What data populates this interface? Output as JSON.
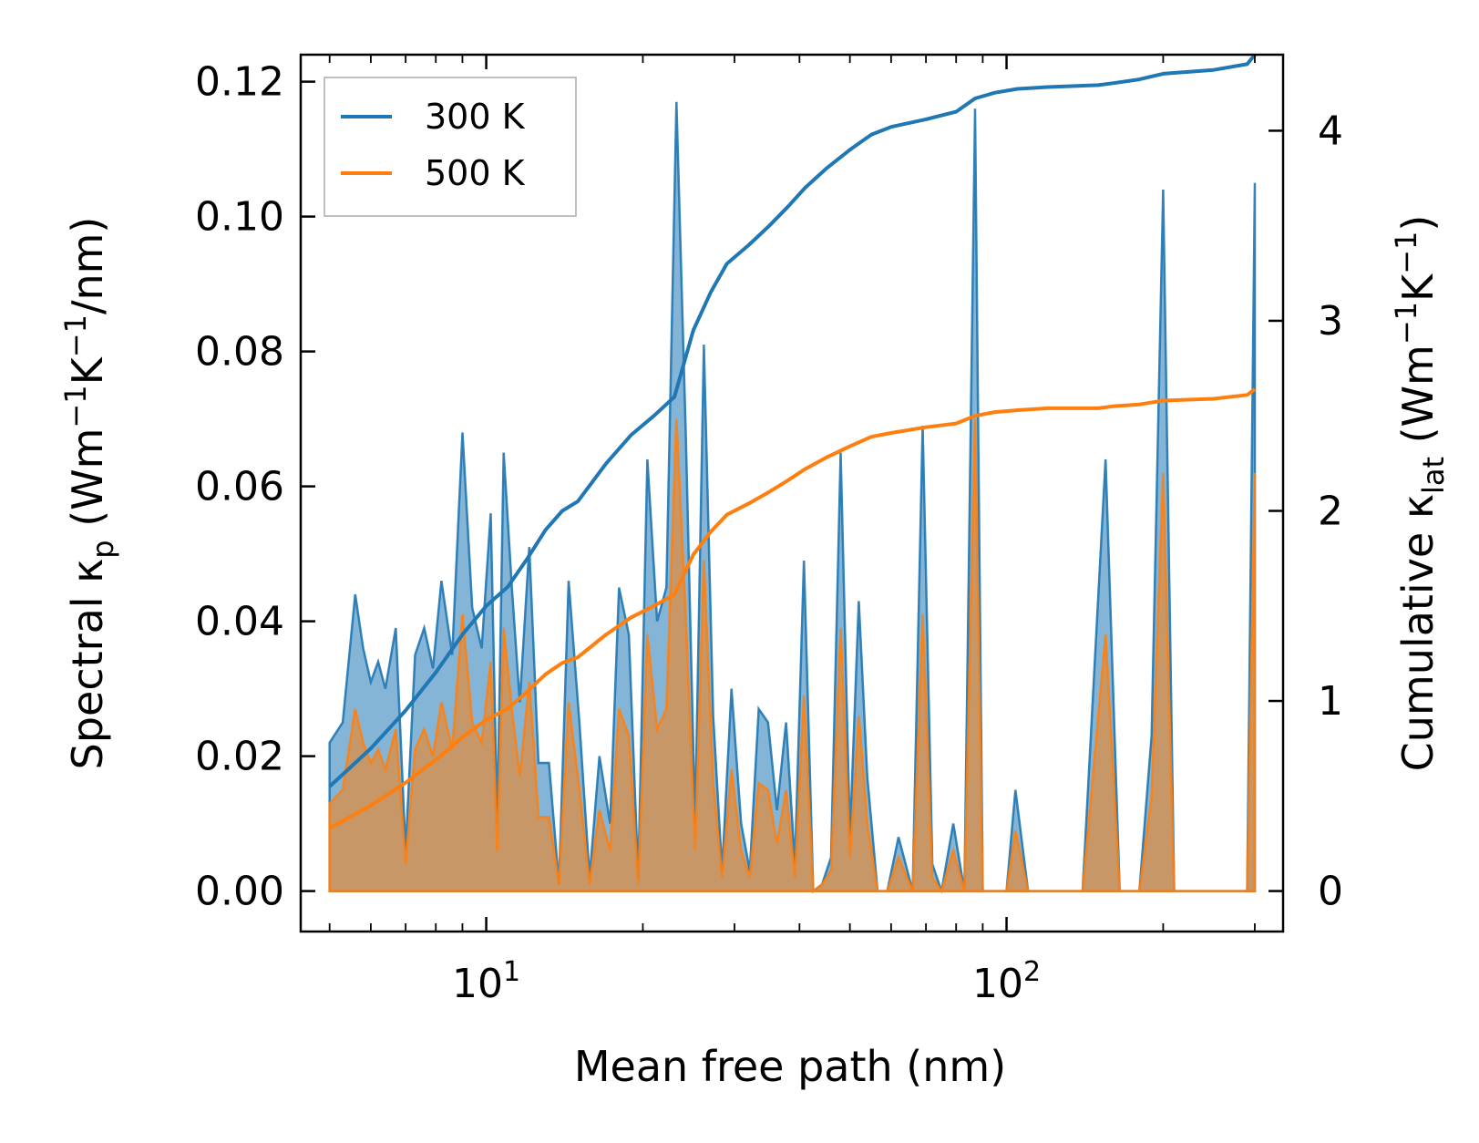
{
  "chart_data": {
    "type": "line",
    "xlabel": "Mean free path (nm)",
    "ylabel_left": {
      "pre": "Spectral κ",
      "sub": "p",
      "unit": "(Wm",
      "e1": "−1",
      "unit2": "K",
      "e2": "−1",
      "unit3": "/nm)"
    },
    "ylabel_right": {
      "pre": "Cumulative κ",
      "sub": "lat",
      "unit": "(Wm",
      "e1": "−1",
      "unit2": "K",
      "e2": "−1",
      "unit3": ")"
    },
    "x_scale": "log",
    "xlim": [
      4.4,
      340
    ],
    "ylim_left": [
      -0.006,
      0.124
    ],
    "ylim_right": [
      -0.213,
      4.4
    ],
    "x_major_ticks": [
      {
        "value": 10,
        "base": "10",
        "exp": "1"
      },
      {
        "value": 100,
        "base": "10",
        "exp": "2"
      }
    ],
    "y_left_ticks": [
      {
        "value": 0.0,
        "label": "0.00"
      },
      {
        "value": 0.02,
        "label": "0.02"
      },
      {
        "value": 0.04,
        "label": "0.04"
      },
      {
        "value": 0.06,
        "label": "0.06"
      },
      {
        "value": 0.08,
        "label": "0.08"
      },
      {
        "value": 0.1,
        "label": "0.10"
      },
      {
        "value": 0.12,
        "label": "0.12"
      }
    ],
    "y_right_ticks": [
      {
        "value": 0,
        "label": "0"
      },
      {
        "value": 1,
        "label": "1"
      },
      {
        "value": 2,
        "label": "2"
      },
      {
        "value": 3,
        "label": "3"
      },
      {
        "value": 4,
        "label": "4"
      }
    ],
    "legend": {
      "position": "top-left",
      "entries": [
        "300 K",
        "500 K"
      ]
    },
    "colors": {
      "300K": "#1f77b4",
      "500K": "#ff7f0e"
    },
    "spectral_300K": {
      "x": [
        5.0,
        5.3,
        5.6,
        5.8,
        6.0,
        6.2,
        6.4,
        6.7,
        7.0,
        7.3,
        7.6,
        7.9,
        8.2,
        8.6,
        9.0,
        9.4,
        9.8,
        10.2,
        10.5,
        10.8,
        11.2,
        11.6,
        12.1,
        12.6,
        13.2,
        13.8,
        14.4,
        15.1,
        15.8,
        16.5,
        17.3,
        18.0,
        18.8,
        19.6,
        20.4,
        21.3,
        22.2,
        23.2,
        24.2,
        25.2,
        26.2,
        27.3,
        28.4,
        29.6,
        30.9,
        32.1,
        33.4,
        34.8,
        36.2,
        37.7,
        39.2,
        40.8,
        42.5,
        44.2,
        46.0,
        48.0,
        50.0,
        52.0,
        54.0,
        56.5,
        59.0,
        62.0,
        66.0,
        69.0,
        72.0,
        75.0,
        79.0,
        83.0,
        87.0,
        90.0,
        95.0,
        100.0,
        104.0,
        110.0,
        120.0,
        140.0,
        155.0,
        165.0,
        180.0,
        190.0,
        200.0,
        210.0,
        250.0,
        290.0,
        300.0
      ],
      "y": [
        0.022,
        0.025,
        0.044,
        0.036,
        0.031,
        0.034,
        0.03,
        0.039,
        0.006,
        0.035,
        0.039,
        0.033,
        0.046,
        0.035,
        0.068,
        0.042,
        0.036,
        0.056,
        0.01,
        0.065,
        0.045,
        0.028,
        0.051,
        0.019,
        0.019,
        0.001,
        0.046,
        0.025,
        0.002,
        0.02,
        0.01,
        0.045,
        0.038,
        0.002,
        0.064,
        0.04,
        0.045,
        0.117,
        0.067,
        0.01,
        0.081,
        0.026,
        0.003,
        0.03,
        0.01,
        0.003,
        0.027,
        0.025,
        0.012,
        0.025,
        0.004,
        0.049,
        0.0,
        0.001,
        0.005,
        0.065,
        0.008,
        0.043,
        0.017,
        0.0,
        0.0,
        0.008,
        0.0,
        0.069,
        0.004,
        0.0,
        0.01,
        0.0,
        0.116,
        0.0,
        0.0,
        0.0,
        0.015,
        0.0,
        0.0,
        0.0,
        0.064,
        0.0,
        0.0,
        0.023,
        0.104,
        0.0,
        0.0,
        0.0,
        0.105
      ]
    },
    "spectral_500K": {
      "x": [
        5.0,
        5.3,
        5.6,
        5.8,
        6.0,
        6.2,
        6.4,
        6.7,
        7.0,
        7.3,
        7.6,
        7.9,
        8.2,
        8.6,
        9.0,
        9.4,
        9.8,
        10.2,
        10.5,
        10.8,
        11.2,
        11.6,
        12.1,
        12.6,
        13.2,
        13.8,
        14.4,
        15.1,
        15.8,
        16.5,
        17.3,
        18.0,
        18.8,
        19.6,
        20.4,
        21.3,
        22.2,
        23.2,
        24.2,
        25.2,
        26.2,
        27.3,
        28.4,
        29.6,
        30.9,
        32.1,
        33.4,
        34.8,
        36.2,
        37.7,
        39.2,
        40.8,
        42.5,
        44.2,
        46.0,
        48.0,
        50.0,
        52.0,
        54.0,
        56.5,
        59.0,
        62.0,
        66.0,
        69.0,
        72.0,
        75.0,
        79.0,
        83.0,
        87.0,
        90.0,
        95.0,
        100.0,
        104.0,
        110.0,
        120.0,
        140.0,
        155.0,
        165.0,
        180.0,
        190.0,
        200.0,
        210.0,
        250.0,
        290.0,
        300.0
      ],
      "y": [
        0.013,
        0.015,
        0.027,
        0.022,
        0.019,
        0.021,
        0.018,
        0.024,
        0.004,
        0.021,
        0.024,
        0.02,
        0.028,
        0.021,
        0.041,
        0.025,
        0.022,
        0.034,
        0.006,
        0.039,
        0.027,
        0.017,
        0.031,
        0.011,
        0.011,
        0.001,
        0.028,
        0.015,
        0.001,
        0.012,
        0.006,
        0.027,
        0.023,
        0.001,
        0.038,
        0.024,
        0.027,
        0.07,
        0.04,
        0.006,
        0.049,
        0.016,
        0.002,
        0.018,
        0.006,
        0.002,
        0.016,
        0.015,
        0.007,
        0.015,
        0.002,
        0.029,
        0.0,
        0.001,
        0.003,
        0.039,
        0.005,
        0.026,
        0.01,
        0.0,
        0.0,
        0.005,
        0.0,
        0.041,
        0.002,
        0.0,
        0.006,
        0.0,
        0.07,
        0.0,
        0.0,
        0.0,
        0.009,
        0.0,
        0.0,
        0.0,
        0.038,
        0.0,
        0.0,
        0.014,
        0.062,
        0.0,
        0.0,
        0.0,
        0.062
      ]
    },
    "cumulative_300K": {
      "x": [
        5.0,
        6.0,
        7.0,
        8.0,
        9.0,
        10.0,
        11.0,
        12.0,
        13.0,
        14.0,
        15.0,
        17.0,
        19.0,
        21.0,
        23.0,
        25.0,
        27.0,
        29.0,
        32.0,
        35.0,
        38.0,
        41.0,
        45.0,
        50.0,
        55.0,
        60.0,
        70.0,
        80.0,
        87.0,
        95.0,
        105.0,
        120.0,
        150.0,
        160.0,
        180.0,
        200.0,
        250.0,
        290.0,
        300.0
      ],
      "y": [
        0.55,
        0.75,
        0.95,
        1.15,
        1.35,
        1.5,
        1.6,
        1.75,
        1.9,
        2.0,
        2.05,
        2.25,
        2.4,
        2.5,
        2.6,
        2.95,
        3.15,
        3.3,
        3.4,
        3.5,
        3.6,
        3.7,
        3.8,
        3.9,
        3.98,
        4.02,
        4.06,
        4.1,
        4.17,
        4.2,
        4.22,
        4.23,
        4.24,
        4.25,
        4.27,
        4.3,
        4.32,
        4.35,
        4.4
      ]
    },
    "cumulative_500K": {
      "x": [
        5.0,
        6.0,
        7.0,
        8.0,
        9.0,
        10.0,
        11.0,
        12.0,
        13.0,
        14.0,
        15.0,
        17.0,
        19.0,
        21.0,
        23.0,
        25.0,
        27.0,
        29.0,
        32.0,
        35.0,
        38.0,
        41.0,
        45.0,
        50.0,
        55.0,
        60.0,
        70.0,
        80.0,
        87.0,
        95.0,
        105.0,
        120.0,
        150.0,
        160.0,
        180.0,
        200.0,
        250.0,
        290.0,
        300.0
      ],
      "y": [
        0.33,
        0.45,
        0.57,
        0.69,
        0.81,
        0.9,
        0.96,
        1.05,
        1.14,
        1.2,
        1.23,
        1.35,
        1.44,
        1.5,
        1.56,
        1.77,
        1.89,
        1.98,
        2.04,
        2.1,
        2.16,
        2.22,
        2.28,
        2.34,
        2.39,
        2.41,
        2.44,
        2.46,
        2.5,
        2.52,
        2.53,
        2.54,
        2.54,
        2.55,
        2.56,
        2.58,
        2.59,
        2.61,
        2.64
      ]
    }
  }
}
